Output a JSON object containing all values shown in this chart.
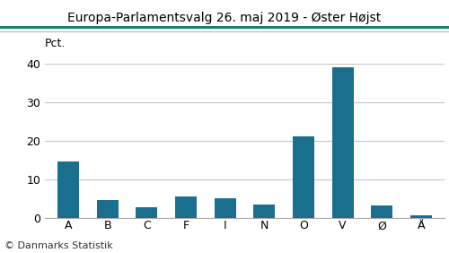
{
  "title": "Europa-Parlamentsvalg 26. maj 2019 - Øster Højst",
  "categories": [
    "A",
    "B",
    "C",
    "F",
    "I",
    "N",
    "O",
    "V",
    "Ø",
    "Å"
  ],
  "values": [
    14.5,
    4.5,
    2.7,
    5.5,
    5.0,
    3.3,
    21.0,
    39.0,
    3.2,
    0.5
  ],
  "bar_color": "#1a6e8e",
  "ylabel": "Pct.",
  "ylim": [
    0,
    42
  ],
  "yticks": [
    0,
    10,
    20,
    30,
    40
  ],
  "footer": "© Danmarks Statistik",
  "title_color": "#000000",
  "title_fontsize": 10,
  "bar_width": 0.55,
  "grid_color": "#c8c8c8",
  "top_line_color": "#007f5f",
  "second_line_color": "#b0b8c0",
  "background_color": "#ffffff",
  "footer_fontsize": 8,
  "tick_fontsize": 9
}
